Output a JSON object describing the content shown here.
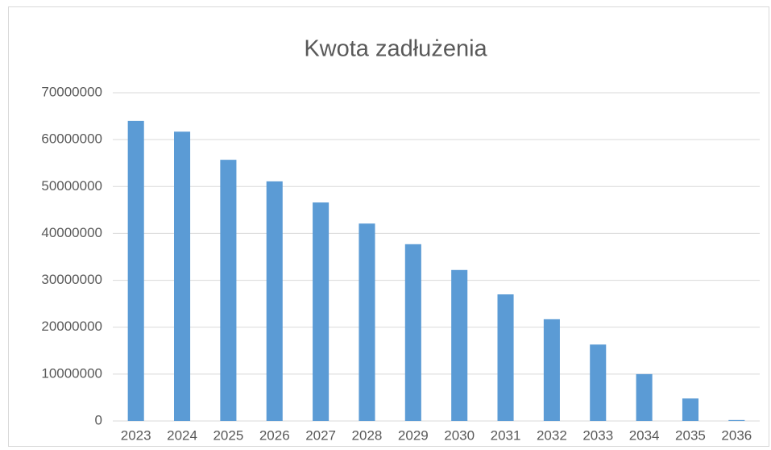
{
  "chart_data": {
    "type": "bar",
    "title": "Kwota zadłużenia",
    "categories": [
      "2023",
      "2024",
      "2025",
      "2026",
      "2027",
      "2028",
      "2029",
      "2030",
      "2031",
      "2032",
      "2033",
      "2034",
      "2035",
      "2036"
    ],
    "values": [
      64000000,
      61700000,
      55700000,
      51100000,
      46600000,
      42100000,
      37700000,
      32200000,
      27000000,
      21700000,
      16300000,
      10000000,
      4800000,
      200000
    ],
    "color": "#5b9bd5",
    "ylim": [
      0,
      70000000
    ],
    "yticks": [
      0,
      10000000,
      20000000,
      30000000,
      40000000,
      50000000,
      60000000,
      70000000
    ],
    "grid": true
  }
}
